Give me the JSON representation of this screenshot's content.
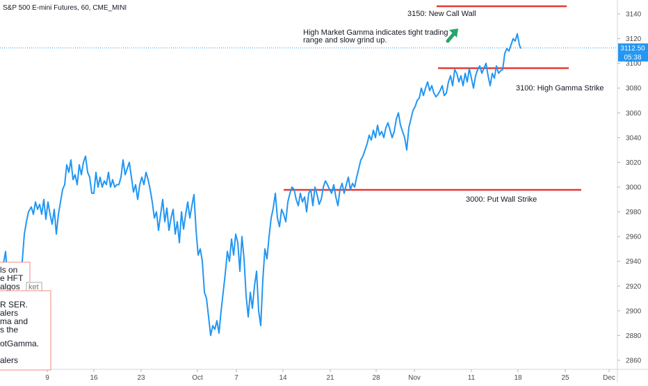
{
  "chart_data": {
    "type": "line",
    "title": "S&P 500 E-mini Futures, 60, CME_MINI",
    "ylim": [
      2855,
      3160
    ],
    "yticks": [
      2860,
      2880,
      2900,
      2920,
      2940,
      2960,
      2980,
      3000,
      3020,
      3040,
      3060,
      3080,
      3100,
      3120,
      3140
    ],
    "xticks": [
      "9",
      "16",
      "23",
      "Oct",
      "7",
      "14",
      "21",
      "28",
      "Nov",
      "11",
      "18",
      "25",
      "Dec"
    ],
    "x": [
      0,
      4,
      8,
      11,
      14,
      17,
      20,
      23,
      26,
      29,
      32,
      35,
      38,
      41,
      45,
      48,
      51,
      54,
      57,
      60,
      63,
      66,
      69,
      72,
      75,
      78,
      81,
      84,
      87,
      90,
      93,
      96,
      99,
      102,
      105,
      108,
      111,
      114,
      117,
      120,
      123,
      126,
      129,
      132,
      135,
      138,
      141,
      144,
      147,
      150,
      153,
      156,
      159,
      162,
      165,
      168,
      171,
      174,
      177,
      180,
      183,
      186,
      189,
      192,
      195,
      198,
      201,
      204,
      207,
      210,
      213,
      216,
      219,
      222,
      225,
      228,
      231,
      234,
      237,
      240,
      243,
      246,
      249,
      252,
      255,
      258,
      261,
      264,
      267,
      270,
      273,
      276,
      279,
      282,
      285,
      288,
      291,
      294,
      297,
      300,
      303,
      306,
      309,
      312,
      315,
      318,
      321,
      324,
      327,
      330,
      333,
      336,
      339,
      342,
      345,
      348,
      351,
      354,
      357,
      360,
      363,
      366,
      369,
      372,
      375,
      378,
      381,
      384,
      387,
      390,
      393,
      396,
      399,
      402,
      405,
      408,
      411,
      414,
      417,
      420,
      423,
      426,
      429,
      432,
      435,
      438,
      441,
      444,
      447,
      450,
      453,
      456,
      459,
      462,
      465,
      468,
      471,
      474,
      477,
      480,
      483,
      486,
      489,
      492,
      495,
      498,
      501,
      504,
      507,
      510,
      513,
      516,
      519,
      522,
      525,
      528,
      531,
      534,
      537,
      540,
      543,
      546,
      549,
      552,
      555,
      558,
      561,
      564,
      567,
      570,
      573,
      576,
      579,
      582,
      585,
      588,
      591,
      594,
      597,
      600,
      603,
      606,
      609,
      612,
      615,
      618,
      621,
      624,
      627,
      630,
      633,
      636,
      639,
      642,
      645,
      648,
      651,
      654,
      657,
      660,
      663,
      666,
      669,
      672,
      675,
      678,
      681,
      684,
      687,
      690,
      693,
      696,
      699,
      702,
      705,
      708,
      711,
      714,
      717,
      720,
      723,
      726,
      729,
      732,
      735,
      738,
      741,
      744,
      747,
      749
    ],
    "y": [
      2922,
      2935,
      2948,
      2925,
      2915,
      2930,
      2938,
      2935,
      2932,
      2925,
      2940,
      2962,
      2972,
      2980,
      2984,
      2978,
      2988,
      2982,
      2986,
      2978,
      2990,
      2974,
      2988,
      2978,
      2970,
      2982,
      2962,
      2978,
      2988,
      2998,
      3002,
      3018,
      3012,
      3022,
      3006,
      3010,
      3002,
      3018,
      3010,
      3020,
      3025,
      3012,
      3008,
      2995,
      2995,
      3012,
      3000,
      3008,
      3000,
      3005,
      3002,
      3012,
      3000,
      3006,
      3000,
      3002,
      3002,
      3008,
      3022,
      3010,
      3015,
      3020,
      3008,
      2996,
      3002,
      2990,
      3002,
      3008,
      3002,
      3012,
      3006,
      2998,
      2988,
      2975,
      2980,
      2965,
      2978,
      2990,
      2972,
      2983,
      2965,
      2975,
      2982,
      2962,
      2972,
      2955,
      2980,
      2966,
      2978,
      2988,
      2975,
      2985,
      2994,
      2965,
      2945,
      2950,
      2940,
      2915,
      2910,
      2895,
      2880,
      2888,
      2885,
      2892,
      2882,
      2900,
      2915,
      2930,
      2948,
      2940,
      2958,
      2945,
      2962,
      2955,
      2932,
      2960,
      2942,
      2912,
      2895,
      2915,
      2902,
      2920,
      2932,
      2900,
      2888,
      2925,
      2950,
      2942,
      2960,
      2975,
      2983,
      2995,
      2975,
      2968,
      2982,
      2978,
      2972,
      2988,
      2995,
      3000,
      2998,
      2990,
      2985,
      2995,
      2988,
      2992,
      2980,
      2995,
      2998,
      2985,
      3000,
      2994,
      2986,
      2990,
      3000,
      3005,
      3002,
      2998,
      2995,
      3002,
      2992,
      2985,
      2998,
      3003,
      2995,
      3002,
      3008,
      2998,
      3003,
      3000,
      3008,
      3015,
      3022,
      3025,
      3030,
      3035,
      3042,
      3038,
      3046,
      3040,
      3050,
      3042,
      3045,
      3040,
      3048,
      3052,
      3046,
      3040,
      3045,
      3055,
      3060,
      3050,
      3045,
      3040,
      3030,
      3048,
      3055,
      3062,
      3065,
      3070,
      3072,
      3080,
      3074,
      3080,
      3085,
      3078,
      3082,
      3076,
      3073,
      3075,
      3078,
      3082,
      3074,
      3076,
      3085,
      3090,
      3082,
      3095,
      3092,
      3085,
      3090,
      3082,
      3092,
      3085,
      3096,
      3088,
      3080,
      3090,
      3095,
      3098,
      3092,
      3096,
      3100,
      3090,
      3082,
      3092,
      3088,
      3098,
      3092,
      3094,
      3095,
      3108,
      3112,
      3110,
      3115,
      3120,
      3118,
      3124,
      3115,
      3112
    ]
  },
  "last_price": {
    "value": "3112.50",
    "countdown": "05:38"
  },
  "annotations": {
    "call_wall": "3150: New Call Wall",
    "gamma_text_1": "High Market Gamma indicates tight trading",
    "gamma_text_2": "range and slow grind up.",
    "high_gamma": "3100: High Gamma Strike",
    "put_wall": "3000: Put Wall Strike"
  },
  "overlay_text": {
    "line1": "ls on",
    "line2": "e HFT",
    "line3": "algos",
    "tab": "ket",
    "line4": "R SER.",
    "line5": "alers",
    "line6": "ma and",
    "line7": "s the",
    "line8": "otGamma.",
    "line9": "alers"
  },
  "colors": {
    "line": "#2196f3",
    "levels": "#e53935",
    "arrow": "#26a66a",
    "price_label": "#2196f3",
    "overlay_border": "#f28b82"
  }
}
